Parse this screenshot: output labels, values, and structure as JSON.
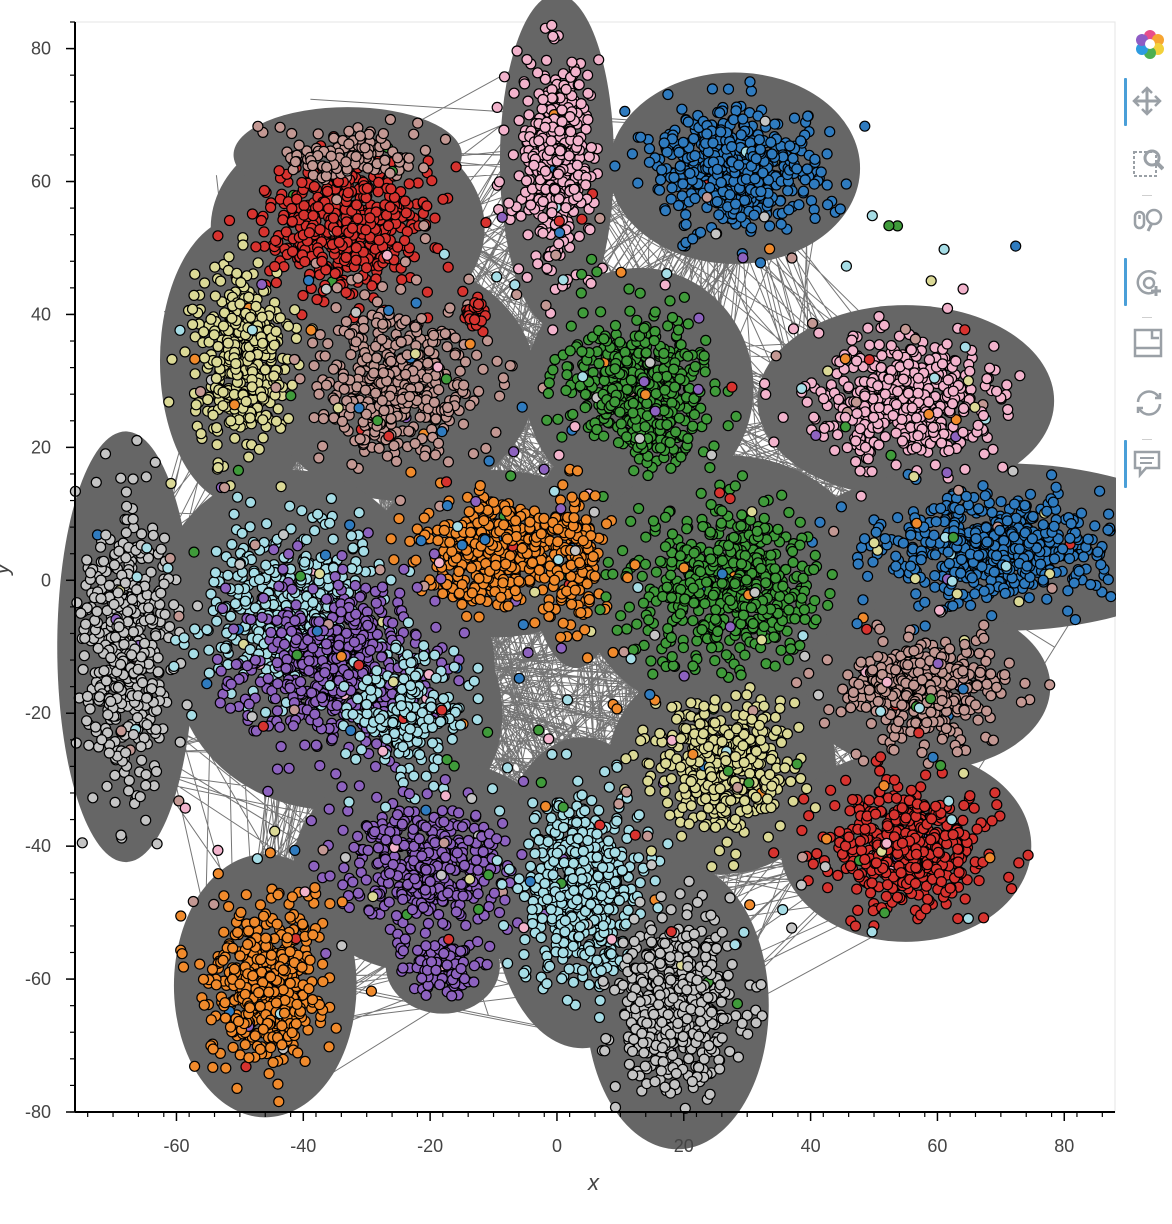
{
  "chart_data": {
    "type": "scatter",
    "xlabel": "x",
    "ylabel": "y",
    "xlim": [
      -76,
      88
    ],
    "ylim": [
      -80,
      84
    ],
    "x_ticks": [
      -60,
      -40,
      -20,
      0,
      20,
      40,
      60,
      80
    ],
    "y_ticks": [
      -80,
      -60,
      -40,
      -20,
      0,
      20,
      40,
      60,
      80
    ],
    "x_tick_labels": [
      "-60",
      "-40",
      "-20",
      "0",
      "20",
      "40",
      "60",
      "80"
    ],
    "y_tick_labels": [
      "-80",
      "-60",
      "-40",
      "-20",
      "0",
      "20",
      "40",
      "60",
      "80"
    ],
    "grid": false,
    "legend": false,
    "edges": {
      "color": "#666666",
      "description": "dense graph edges connecting nodes"
    },
    "palette": {
      "blue": "#2f7bbf",
      "orange": "#f08a2c",
      "green": "#3f9b3a",
      "red": "#d7332f",
      "purple": "#8d62bf",
      "brown": "#c39893",
      "pink": "#f2b3cc",
      "gray": "#c4c4c4",
      "khaki": "#dbd996",
      "lightblue": "#a6dde6"
    },
    "clusters": [
      {
        "color": "pink",
        "center": [
          0,
          63
        ],
        "spread": [
          5,
          14
        ],
        "n": 420
      },
      {
        "color": "blue",
        "center": [
          28,
          62
        ],
        "spread": [
          11,
          8
        ],
        "n": 560
      },
      {
        "color": "red",
        "center": [
          -33,
          53
        ],
        "spread": [
          12,
          9
        ],
        "n": 520
      },
      {
        "color": "brown",
        "center": [
          -33,
          64
        ],
        "spread": [
          10,
          4
        ],
        "n": 120
      },
      {
        "color": "khaki",
        "center": [
          -50,
          33
        ],
        "spread": [
          7,
          12
        ],
        "n": 420
      },
      {
        "color": "brown",
        "center": [
          -25,
          30
        ],
        "spread": [
          12,
          10
        ],
        "n": 460
      },
      {
        "color": "red",
        "center": [
          -13,
          40
        ],
        "spread": [
          2,
          2
        ],
        "n": 30
      },
      {
        "color": "green",
        "center": [
          13,
          29
        ],
        "spread": [
          10,
          10
        ],
        "n": 480
      },
      {
        "color": "pink",
        "center": [
          55,
          27
        ],
        "spread": [
          13,
          8
        ],
        "n": 440
      },
      {
        "color": "blue",
        "center": [
          70,
          5
        ],
        "spread": [
          18,
          7
        ],
        "n": 560
      },
      {
        "color": "orange",
        "center": [
          -10,
          4
        ],
        "spread": [
          11,
          7
        ],
        "n": 380
      },
      {
        "color": "orange",
        "center": [
          3,
          3
        ],
        "spread": [
          4,
          9
        ],
        "n": 160
      },
      {
        "color": "green",
        "center": [
          27,
          -1
        ],
        "spread": [
          13,
          11
        ],
        "n": 520
      },
      {
        "color": "gray",
        "center": [
          -68,
          -10
        ],
        "spread": [
          6,
          18
        ],
        "n": 520
      },
      {
        "color": "lightblue",
        "center": [
          -42,
          -5
        ],
        "spread": [
          12,
          12
        ],
        "n": 520
      },
      {
        "color": "purple",
        "center": [
          -35,
          -13
        ],
        "spread": [
          14,
          12
        ],
        "n": 520
      },
      {
        "color": "lightblue",
        "center": [
          -23,
          -20
        ],
        "spread": [
          8,
          9
        ],
        "n": 220
      },
      {
        "color": "brown",
        "center": [
          58,
          -16
        ],
        "spread": [
          11,
          7
        ],
        "n": 440
      },
      {
        "color": "khaki",
        "center": [
          26,
          -28
        ],
        "spread": [
          10,
          9
        ],
        "n": 440
      },
      {
        "color": "red",
        "center": [
          55,
          -40
        ],
        "spread": [
          11,
          8
        ],
        "n": 480
      },
      {
        "color": "purple",
        "center": [
          -20,
          -43
        ],
        "spread": [
          12,
          9
        ],
        "n": 400
      },
      {
        "color": "purple",
        "center": [
          -18,
          -58
        ],
        "spread": [
          5,
          4
        ],
        "n": 120
      },
      {
        "color": "lightblue",
        "center": [
          4,
          -47
        ],
        "spread": [
          8,
          13
        ],
        "n": 520
      },
      {
        "color": "gray",
        "center": [
          19,
          -64
        ],
        "spread": [
          8,
          12
        ],
        "n": 520
      },
      {
        "color": "orange",
        "center": [
          -46,
          -61
        ],
        "spread": [
          8,
          11
        ],
        "n": 480
      }
    ],
    "outlier_count": 260
  },
  "toolbar": {
    "tools": [
      {
        "name": "logo-icon",
        "active": false
      },
      {
        "name": "pan-icon",
        "active": true
      },
      {
        "name": "box-zoom-icon",
        "active": false
      },
      {
        "name": "wheel-zoom-icon",
        "active": false
      },
      {
        "name": "tap-icon",
        "active": true
      },
      {
        "name": "save-icon",
        "active": false
      },
      {
        "name": "reset-icon",
        "active": false
      },
      {
        "name": "hover-icon",
        "active": true
      }
    ]
  }
}
